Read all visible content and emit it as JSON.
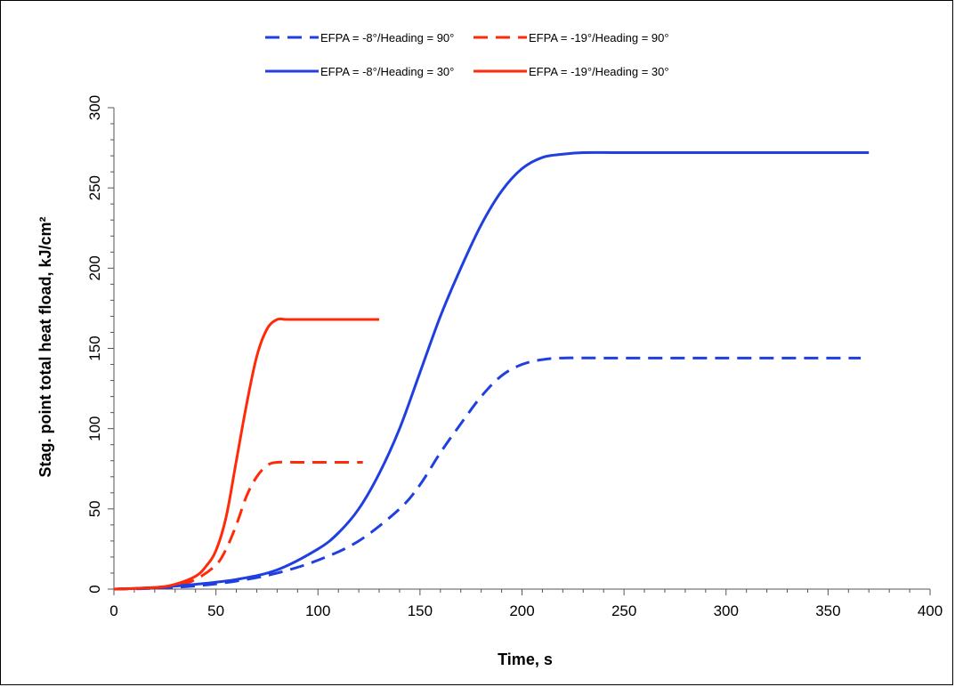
{
  "chart_data": {
    "type": "line",
    "title": "",
    "xlabel": "Time, s",
    "ylabel": "Stag. point total heat fload, kJ/cm²",
    "xlim": [
      0,
      400
    ],
    "ylim": [
      0,
      300
    ],
    "xticks": [
      0,
      50,
      100,
      150,
      200,
      250,
      300,
      350,
      400
    ],
    "yticks": [
      0,
      50,
      100,
      150,
      200,
      250,
      300
    ],
    "grid": false,
    "legend_position": "top",
    "series": [
      {
        "name": "EFPA = -8°/Heading = 90°",
        "color": "#1f3fe0",
        "dash": "dashed",
        "x": [
          0,
          20,
          40,
          60,
          80,
          100,
          120,
          140,
          150,
          160,
          170,
          180,
          190,
          200,
          210,
          220,
          240,
          300,
          366
        ],
        "y": [
          0,
          0.5,
          2,
          5,
          10,
          18,
          30,
          50,
          65,
          85,
          103,
          120,
          133,
          140,
          143,
          144,
          144,
          144,
          144
        ]
      },
      {
        "name": "EFPA = -19°/Heading = 90°",
        "color": "#ff2a0a",
        "dash": "dashed",
        "x": [
          0,
          20,
          30,
          40,
          50,
          55,
          60,
          65,
          70,
          75,
          80,
          90,
          100,
          122
        ],
        "y": [
          0,
          1,
          2,
          6,
          15,
          25,
          40,
          58,
          70,
          77,
          79,
          79,
          79,
          79
        ]
      },
      {
        "name": "EFPA = -8°/Heading = 30°",
        "color": "#1f3fe0",
        "dash": "solid",
        "x": [
          0,
          20,
          40,
          60,
          80,
          100,
          110,
          120,
          130,
          140,
          150,
          160,
          170,
          180,
          190,
          200,
          210,
          220,
          230,
          250,
          300,
          370
        ],
        "y": [
          0,
          1,
          3,
          6,
          12,
          25,
          35,
          50,
          72,
          100,
          135,
          170,
          200,
          227,
          248,
          262,
          269,
          271,
          272,
          272,
          272,
          272
        ]
      },
      {
        "name": "EFPA = -19°/Heading = 30°",
        "color": "#ff2a0a",
        "dash": "solid",
        "x": [
          0,
          20,
          30,
          40,
          45,
          50,
          55,
          60,
          65,
          70,
          75,
          80,
          85,
          100,
          130
        ],
        "y": [
          0,
          1,
          3,
          8,
          14,
          24,
          45,
          80,
          115,
          145,
          162,
          168,
          168,
          168,
          168
        ]
      }
    ]
  }
}
